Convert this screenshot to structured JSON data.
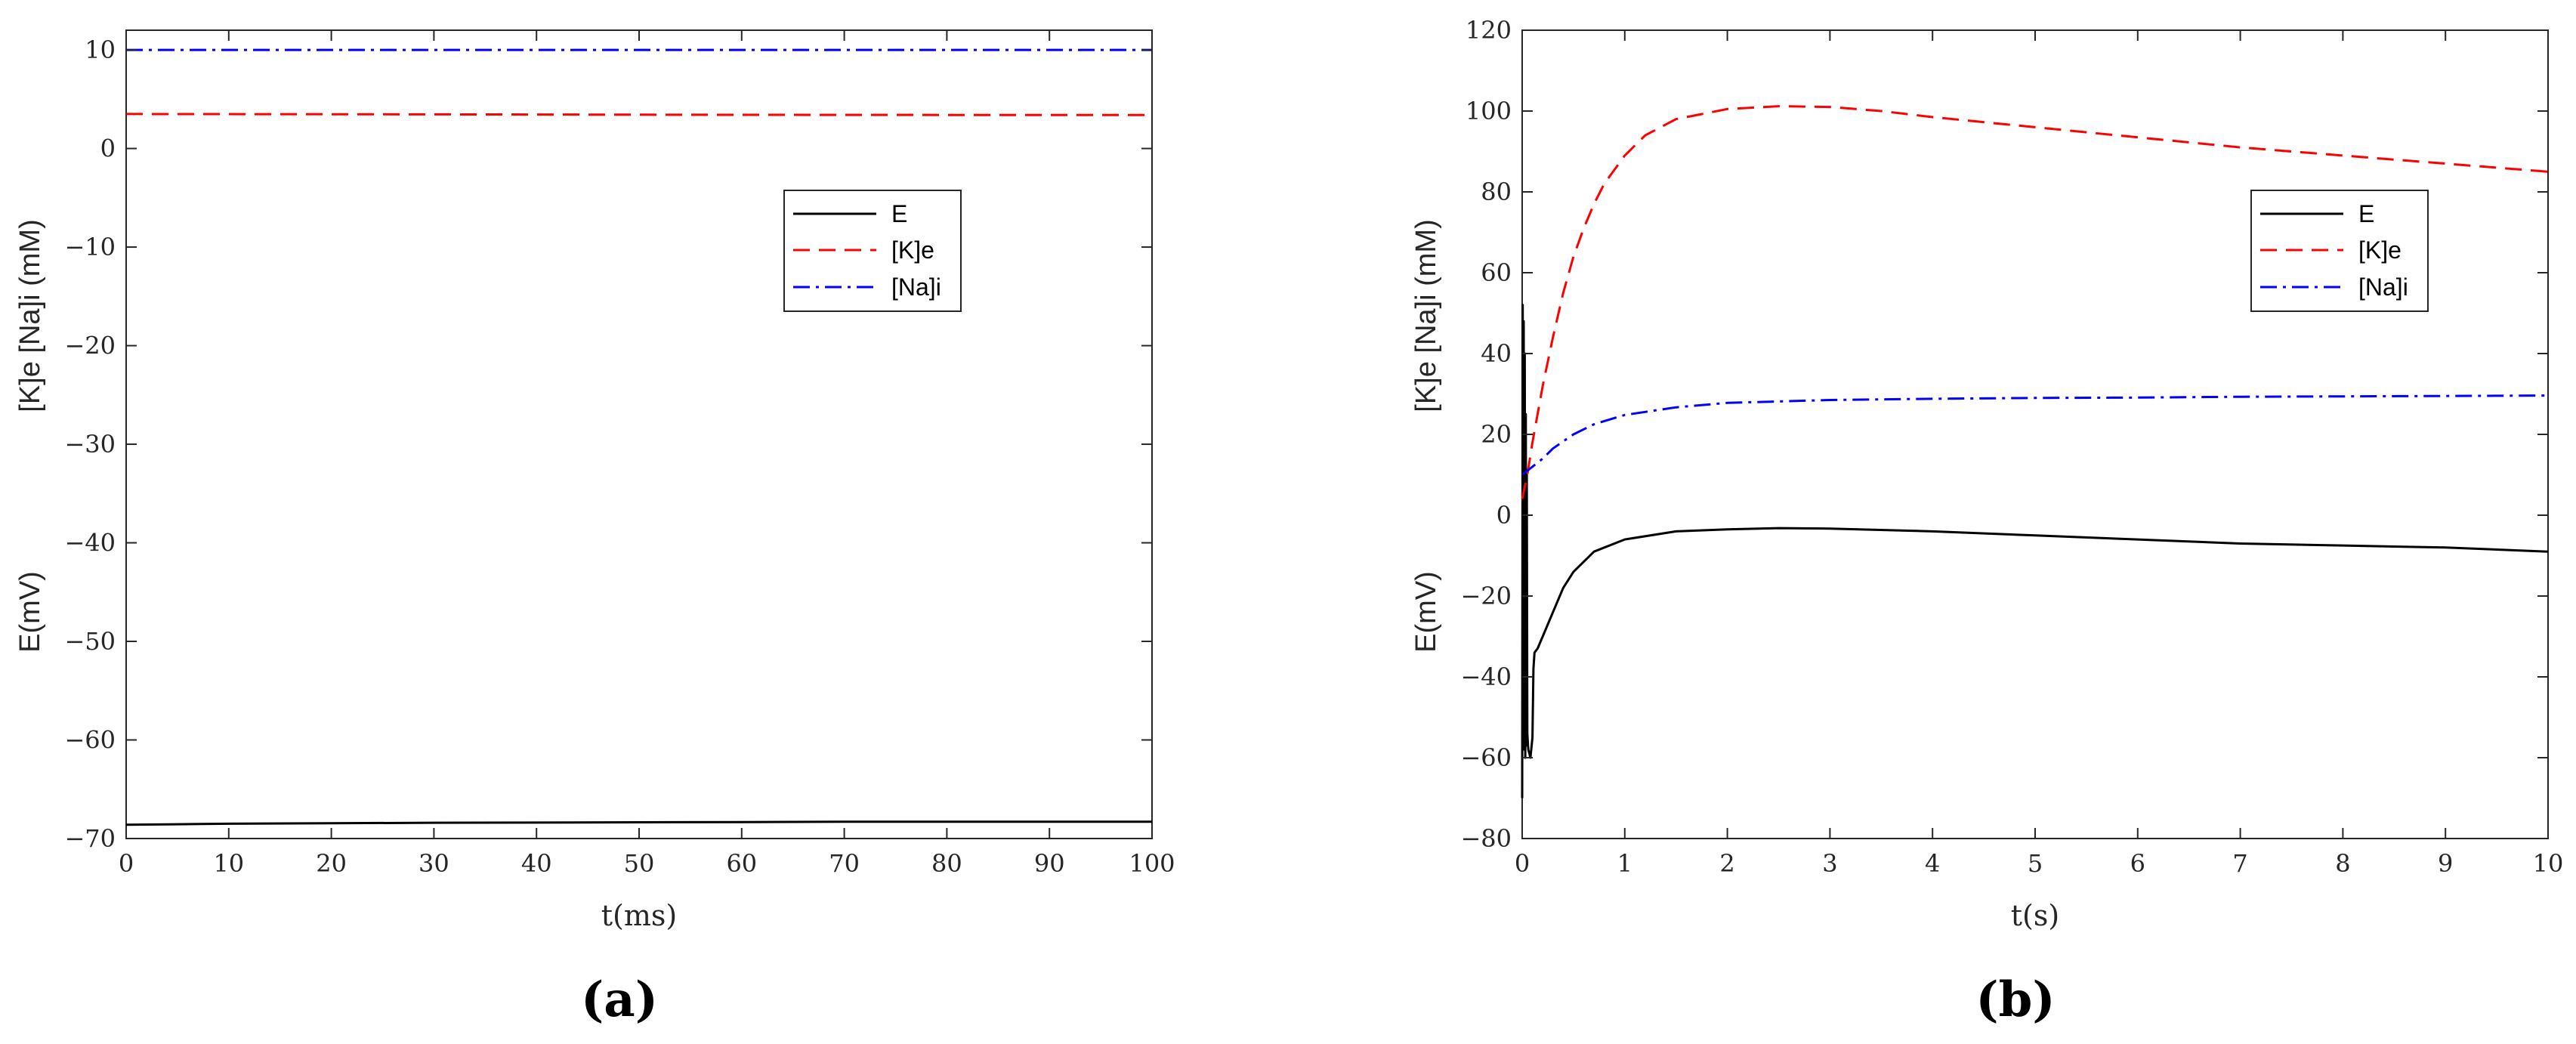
{
  "chart_data": [
    {
      "type": "line",
      "panel_label": "(a)",
      "xlabel": "t(ms)",
      "ylabel_top": "[K]e  [Na]i (mM)",
      "ylabel_bottom": "E(mV)",
      "xlim": [
        0,
        100
      ],
      "ylim": [
        -70,
        12
      ],
      "xticks": [
        0,
        10,
        20,
        30,
        40,
        50,
        60,
        70,
        80,
        90,
        100
      ],
      "yticks": [
        10,
        0,
        -10,
        -20,
        -30,
        -40,
        -50,
        -60,
        -70
      ],
      "legend_position": "upper-right",
      "series": [
        {
          "name": "E",
          "color": "#000000",
          "dash": "solid",
          "x": [
            0,
            5,
            10,
            20,
            30,
            40,
            50,
            60,
            70,
            80,
            90,
            100
          ],
          "y": [
            -68.6,
            -68.55,
            -68.5,
            -68.45,
            -68.4,
            -68.38,
            -68.35,
            -68.33,
            -68.3,
            -68.3,
            -68.3,
            -68.3
          ]
        },
        {
          "name": "[K]e",
          "color": "#ff0000",
          "dash": "dashed",
          "x": [
            0,
            20,
            40,
            60,
            80,
            100
          ],
          "y": [
            3.5,
            3.48,
            3.45,
            3.42,
            3.4,
            3.4
          ]
        },
        {
          "name": "[Na]i",
          "color": "#0000ff",
          "dash": "dashdot",
          "x": [
            0,
            20,
            40,
            60,
            80,
            100
          ],
          "y": [
            10,
            10,
            10,
            10,
            10,
            10
          ]
        }
      ]
    },
    {
      "type": "line",
      "panel_label": "(b)",
      "xlabel": "t(s)",
      "ylabel_top": "[K]e  [Na]i (mM)",
      "ylabel_bottom": "E(mV)",
      "xlim": [
        0,
        10
      ],
      "ylim": [
        -80,
        120
      ],
      "xticks": [
        0,
        1,
        2,
        3,
        4,
        5,
        6,
        7,
        8,
        9,
        10
      ],
      "yticks": [
        120,
        100,
        80,
        60,
        40,
        20,
        0,
        -20,
        -40,
        -60,
        -80
      ],
      "legend_position": "upper-right",
      "series": [
        {
          "name": "E",
          "color": "#000000",
          "dash": "solid",
          "x": [
            0,
            0.005,
            0.01,
            0.015,
            0.02,
            0.025,
            0.03,
            0.035,
            0.04,
            0.045,
            0.05,
            0.06,
            0.08,
            0.1,
            0.11,
            0.12,
            0.15,
            0.2,
            0.3,
            0.4,
            0.5,
            0.7,
            1.0,
            1.5,
            2.0,
            2.5,
            3.0,
            4.0,
            5.0,
            6.0,
            7.0,
            8.0,
            9.0,
            10.0
          ],
          "y": [
            -70,
            52,
            -55,
            48,
            -58,
            40,
            -60,
            25,
            -57,
            10,
            -54,
            -58,
            -60,
            -55,
            -38,
            -34,
            -33,
            -30,
            -24,
            -18,
            -14,
            -9,
            -6,
            -4,
            -3.5,
            -3.2,
            -3.3,
            -4,
            -5,
            -6,
            -7,
            -7.5,
            -8,
            -9
          ]
        },
        {
          "name": "[K]e",
          "color": "#ff0000",
          "dash": "dashed",
          "x": [
            0,
            0.05,
            0.1,
            0.2,
            0.3,
            0.4,
            0.5,
            0.6,
            0.7,
            0.8,
            1.0,
            1.2,
            1.5,
            2.0,
            2.5,
            3.0,
            3.5,
            4.0,
            5.0,
            6.0,
            7.0,
            8.0,
            9.0,
            10.0
          ],
          "y": [
            4,
            10,
            18,
            32,
            44,
            55,
            64,
            71,
            77,
            82,
            89,
            94,
            98,
            100.5,
            101.2,
            101,
            100,
            98.5,
            96,
            93.5,
            91,
            89,
            87,
            85
          ]
        },
        {
          "name": "[Na]i",
          "color": "#0000ff",
          "dash": "dashdot",
          "x": [
            0,
            0.1,
            0.2,
            0.3,
            0.5,
            0.7,
            1.0,
            1.5,
            2.0,
            3.0,
            4.0,
            5.0,
            6.0,
            7.0,
            8.0,
            9.0,
            10.0
          ],
          "y": [
            10,
            12,
            14,
            16.5,
            20,
            22.5,
            24.8,
            26.7,
            27.8,
            28.5,
            28.8,
            29,
            29.1,
            29.3,
            29.4,
            29.5,
            29.6
          ]
        }
      ]
    }
  ]
}
